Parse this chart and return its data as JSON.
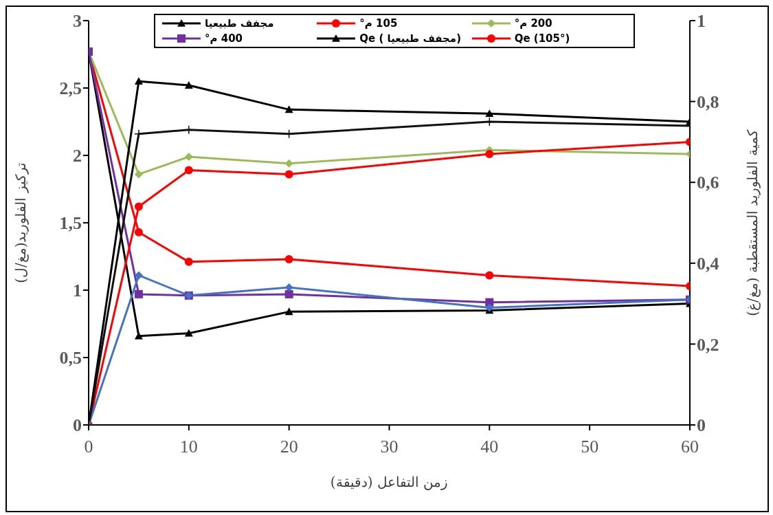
{
  "chart_data": {
    "type": "line",
    "xlabel": "زمن التفاعل (دقيقة)",
    "ylabel": "تركيز الفلوريد(مغ/ل)",
    "y2label": "كمية الفلوريد المستقطبة (مغ/غ)",
    "x": [
      0,
      5,
      10,
      20,
      40,
      60
    ],
    "xlim": [
      0,
      60
    ],
    "xticks": [
      0,
      10,
      20,
      30,
      40,
      50,
      60
    ],
    "ylim": [
      0,
      3
    ],
    "yticks": [
      0,
      {
        "value": 0.5,
        "label": "0,5"
      },
      1,
      {
        "value": 1.5,
        "label": "1,5"
      },
      2,
      {
        "value": 2.5,
        "label": "2,5"
      },
      3
    ],
    "y2lim": [
      0,
      1
    ],
    "y2ticks": [
      0,
      {
        "value": 0.2,
        "label": "0,2"
      },
      {
        "value": 0.4,
        "label": "0,4"
      },
      {
        "value": 0.6,
        "label": "0,6"
      },
      {
        "value": 0.8,
        "label": "0,8"
      },
      1
    ],
    "grid": false,
    "legend": "top",
    "series": [
      {
        "name": "مجفف طبيعيا",
        "color": "#000000",
        "marker": "triangle",
        "values": [
          2.77,
          0.66,
          0.68,
          0.84,
          0.85,
          0.9
        ]
      },
      {
        "name": "105 م°",
        "color": "#ff0000",
        "marker": "circle",
        "values": [
          2.77,
          1.43,
          1.21,
          1.23,
          1.11,
          1.03
        ]
      },
      {
        "name": "200 م°",
        "color": "#9bbb59",
        "marker": "diamond",
        "values": [
          2.77,
          1.86,
          1.99,
          1.94,
          2.04,
          2.01
        ]
      },
      {
        "name": "400 م°",
        "color": "#7030a0",
        "marker": "square",
        "values": [
          2.77,
          0.97,
          0.96,
          0.97,
          0.91,
          0.93
        ]
      },
      {
        "name": "Qe ( مجفف طبيعيا)",
        "color": "#000000",
        "marker": "triangle",
        "axis": "y2",
        "values": [
          0,
          0.85,
          0.84,
          0.78,
          0.77,
          0.75
        ]
      },
      {
        "name": "Qe (105°)",
        "color": "#ff0000",
        "marker": "circle",
        "axis": "y2",
        "values": [
          0,
          0.54,
          0.63,
          0.62,
          0.67,
          0.7
        ]
      },
      {
        "color": "#4472c4",
        "marker": "diamond",
        "axis": "y2",
        "values": [
          0,
          0.37,
          0.32,
          0.34,
          0.29,
          0.31
        ]
      },
      {
        "color": "#111111",
        "marker": "cross",
        "axis": "y2",
        "values": [
          0,
          0.72,
          0.73,
          0.72,
          0.75,
          0.74
        ]
      }
    ]
  }
}
